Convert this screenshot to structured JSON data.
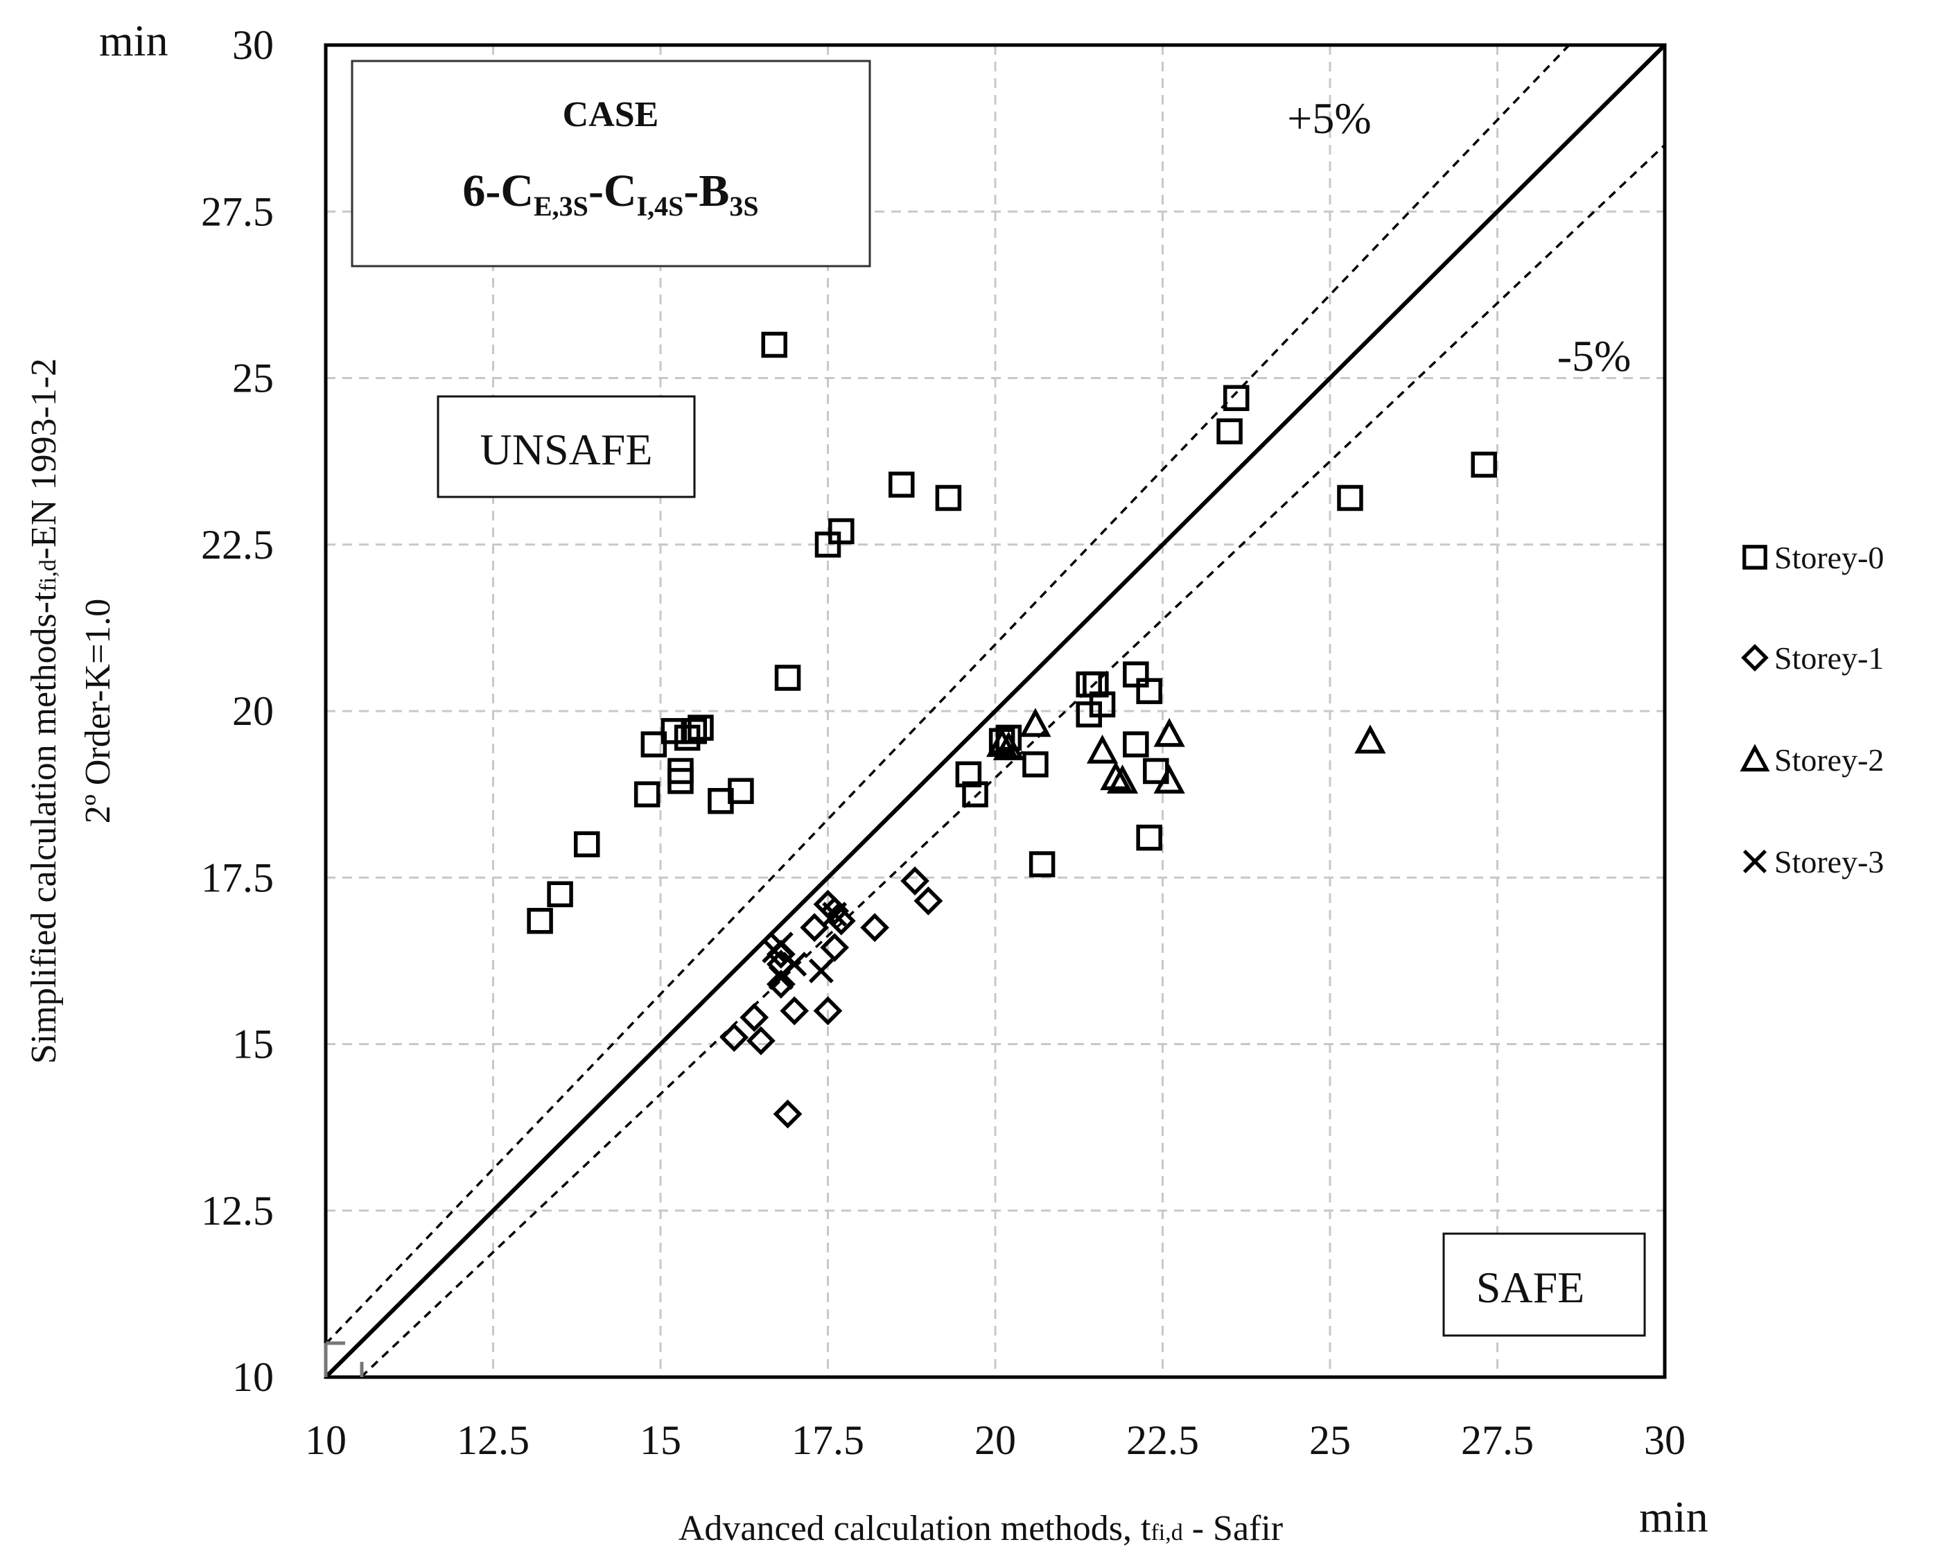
{
  "chart_data": {
    "type": "scatter",
    "title": "",
    "case_label": "CASE",
    "case_id": {
      "prefix": "6-C",
      "sub1": "E,3S",
      "mid1": "-C",
      "sub2": "I,4S",
      "mid2": "-B",
      "sub3": "3S"
    },
    "xlabel": {
      "main": "Advanced calculation methods, t",
      "sub": "fi,d",
      "suffix": " - Safir"
    },
    "ylabel": {
      "main": "Simplified calculation methods-t",
      "sub": "fi,d",
      "suffix": "-EN 1993-1-2"
    },
    "ylabel2": "2º Order-K=1.0",
    "x_unit": "min",
    "y_unit": "min",
    "xlim": [
      10,
      30
    ],
    "ylim": [
      10,
      30
    ],
    "xticks": [
      "10",
      "12.5",
      "15",
      "17.5",
      "20",
      "22.5",
      "25",
      "27.5",
      "30"
    ],
    "yticks": [
      "10",
      "12.5",
      "15",
      "17.5",
      "20",
      "22.5",
      "25",
      "27.5",
      "30"
    ],
    "grid": true,
    "reference_lines": [
      {
        "name": "equality",
        "slope": 1.0,
        "style": "solid"
      },
      {
        "name": "+5%",
        "slope": 1.05,
        "style": "dashed",
        "label": "+5%"
      },
      {
        "name": "-5%",
        "slope": 0.95,
        "style": "dashed",
        "label": "-5%"
      }
    ],
    "region_labels": {
      "unsafe": "UNSAFE",
      "safe": "SAFE"
    },
    "legend_position": "right",
    "series": [
      {
        "name": "Storey-0",
        "marker": "square",
        "points": [
          [
            16.7,
            25.5
          ],
          [
            18.6,
            23.4
          ],
          [
            19.3,
            23.2
          ],
          [
            17.7,
            22.7
          ],
          [
            17.5,
            22.5
          ],
          [
            16.9,
            20.5
          ],
          [
            14.9,
            19.5
          ],
          [
            15.2,
            19.7
          ],
          [
            15.4,
            19.6
          ],
          [
            15.5,
            19.7
          ],
          [
            15.6,
            19.75
          ],
          [
            15.3,
            19.1
          ],
          [
            15.3,
            18.95
          ],
          [
            14.8,
            18.75
          ],
          [
            16.2,
            18.8
          ],
          [
            15.9,
            18.65
          ],
          [
            13.9,
            18.0
          ],
          [
            13.5,
            17.25
          ],
          [
            13.2,
            16.85
          ],
          [
            23.6,
            24.7
          ],
          [
            23.5,
            24.2
          ],
          [
            27.3,
            23.7
          ],
          [
            25.3,
            23.2
          ],
          [
            19.6,
            19.05
          ],
          [
            19.7,
            18.75
          ],
          [
            20.2,
            19.6
          ],
          [
            20.1,
            19.55
          ],
          [
            20.6,
            19.2
          ],
          [
            20.7,
            17.7
          ],
          [
            21.4,
            20.4
          ],
          [
            21.5,
            20.4
          ],
          [
            21.4,
            19.95
          ],
          [
            21.6,
            20.1
          ],
          [
            22.1,
            20.55
          ],
          [
            22.3,
            20.3
          ],
          [
            22.1,
            19.5
          ],
          [
            22.4,
            19.1
          ],
          [
            22.3,
            18.1
          ]
        ]
      },
      {
        "name": "Storey-1",
        "marker": "diamond",
        "points": [
          [
            17.5,
            17.1
          ],
          [
            17.6,
            17.0
          ],
          [
            17.7,
            16.85
          ],
          [
            17.3,
            16.75
          ],
          [
            17.6,
            16.45
          ],
          [
            16.8,
            16.35
          ],
          [
            16.8,
            16.2
          ],
          [
            16.8,
            15.9
          ],
          [
            16.4,
            15.4
          ],
          [
            16.1,
            15.1
          ],
          [
            16.5,
            15.05
          ],
          [
            17.0,
            15.5
          ],
          [
            17.5,
            15.5
          ],
          [
            16.9,
            13.95
          ],
          [
            18.2,
            16.75
          ],
          [
            18.8,
            17.45
          ],
          [
            19.0,
            17.15
          ]
        ]
      },
      {
        "name": "Storey-2",
        "marker": "triangle",
        "points": [
          [
            20.6,
            19.8
          ],
          [
            20.1,
            19.5
          ],
          [
            20.2,
            19.45
          ],
          [
            21.6,
            19.4
          ],
          [
            21.8,
            19.0
          ],
          [
            21.9,
            18.95
          ],
          [
            22.6,
            19.65
          ],
          [
            22.6,
            18.95
          ],
          [
            25.6,
            19.55
          ]
        ]
      },
      {
        "name": "Storey-3",
        "marker": "x",
        "points": [
          [
            16.8,
            16.5
          ],
          [
            16.7,
            16.4
          ],
          [
            17.0,
            16.2
          ],
          [
            17.4,
            16.1
          ],
          [
            16.8,
            16.0
          ],
          [
            17.6,
            16.95
          ]
        ]
      }
    ]
  }
}
